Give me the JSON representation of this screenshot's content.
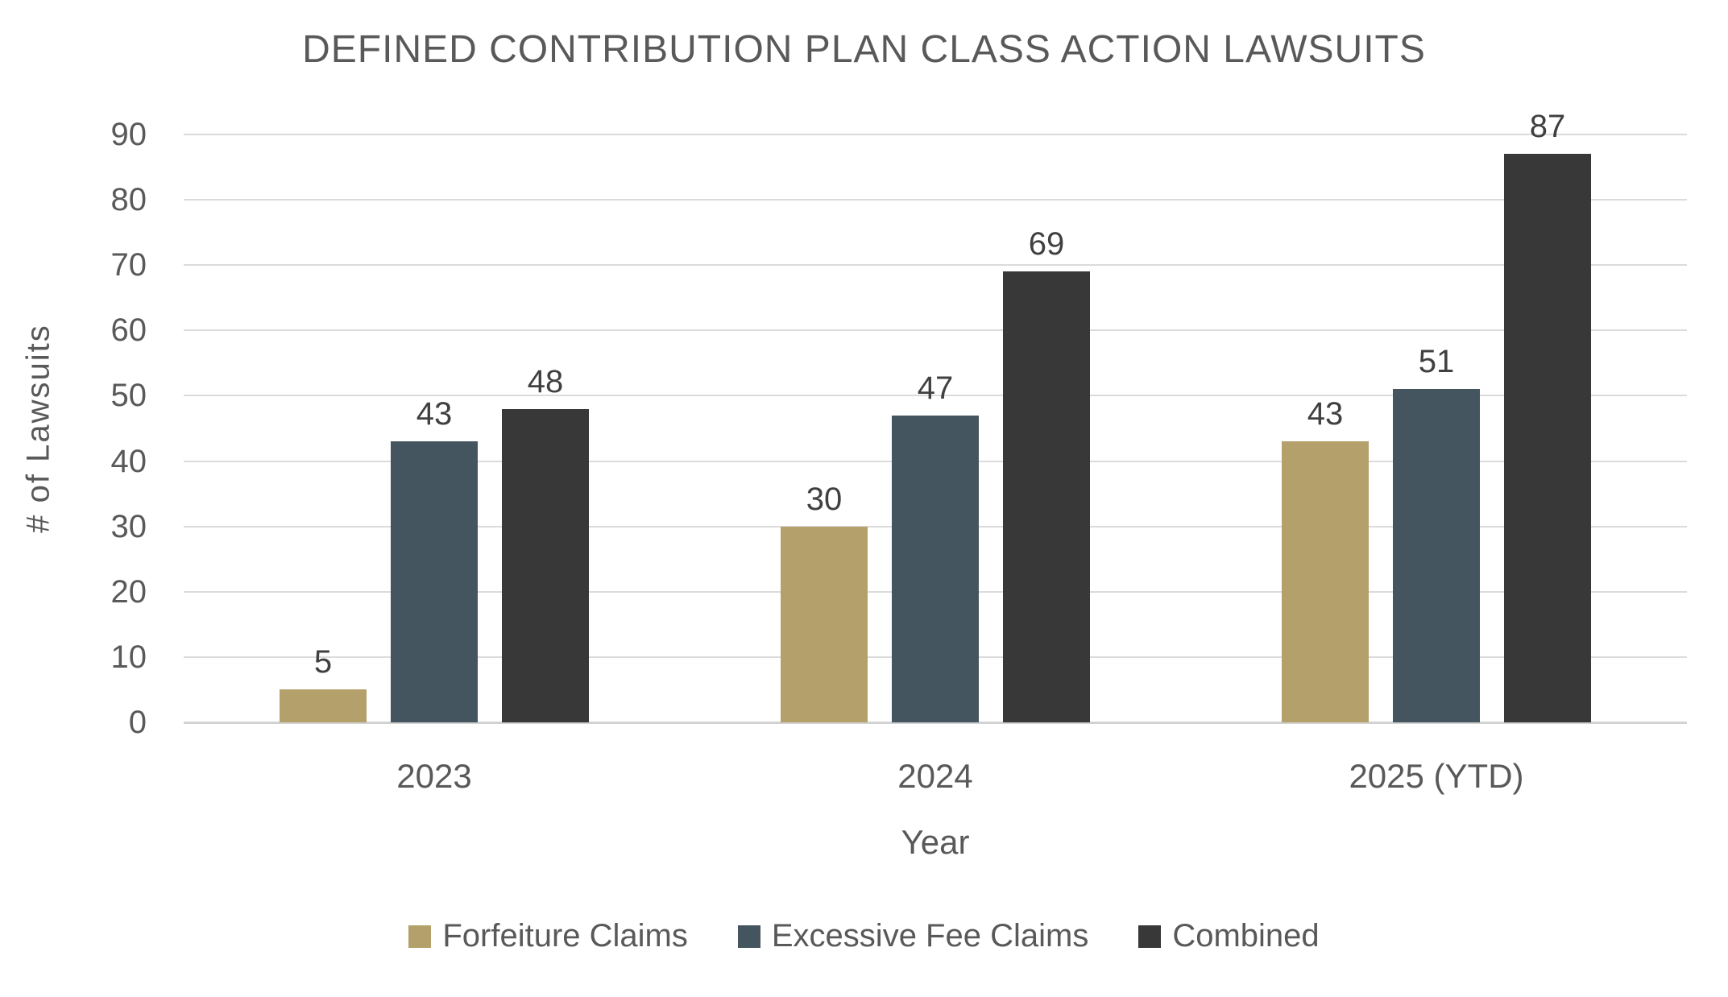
{
  "chart_data": {
    "type": "bar",
    "title": "DEFINED CONTRIBUTION PLAN CLASS ACTION LAWSUITS",
    "categories": [
      "2023",
      "2024",
      "2025 (YTD)"
    ],
    "series": [
      {
        "name": "Forfeiture Claims",
        "color": "#B4A06A",
        "values": [
          5,
          30,
          43
        ]
      },
      {
        "name": "Excessive Fee Claims",
        "color": "#44555F",
        "values": [
          43,
          47,
          51
        ]
      },
      {
        "name": "Combined",
        "color": "#383838",
        "values": [
          48,
          69,
          87
        ]
      }
    ],
    "xlabel": "Year",
    "ylabel": "# of Lawsuits",
    "ylim": [
      0,
      90
    ],
    "ytick_step": 10,
    "grid": true,
    "legend_position": "bottom",
    "data_labels": true
  },
  "colors": {
    "background": "#FFFFFF",
    "title_text": "#595959",
    "axis_text": "#595959",
    "data_label_text": "#404040",
    "gridline": "#DBDBDB",
    "axis_line": "#D2D2D2"
  }
}
